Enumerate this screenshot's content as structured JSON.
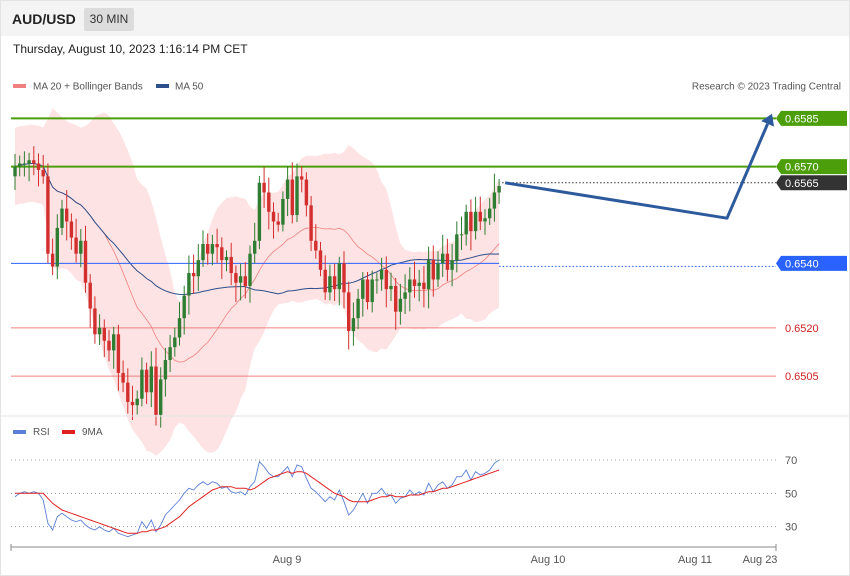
{
  "header": {
    "symbol": "AUD/USD",
    "interval": "30 MIN",
    "datetime": "Thursday, August 10, 2023 1:16:14 PM CET"
  },
  "copyright": "Research © 2023 Trading Central",
  "colors": {
    "resistance": "#4c9f0a",
    "pivot": "#2962ff",
    "support": "#f08080",
    "current": "#333333",
    "arrow": "#2d5a9c",
    "bull": "#2e7d32",
    "bear": "#d32f2f",
    "band": "#fde3e3",
    "ma20": "#f08080",
    "ma50": "#2d4f8c",
    "rsi": "#5b7fd6",
    "rsi_ma": "#e02020"
  },
  "chart_data": [
    {
      "type": "candlestick",
      "title": "",
      "legend": [
        {
          "name": "MA 20 + Bollinger Bands",
          "color": "#f08080"
        },
        {
          "name": "MA 50",
          "color": "#2d4f8c"
        }
      ],
      "x_labels": [
        "Aug 9",
        "Aug 10",
        "Aug 11",
        "Aug 23"
      ],
      "levels": [
        {
          "value": 0.6585,
          "label": "0.6585",
          "role": "resistance"
        },
        {
          "value": 0.657,
          "label": "0.6570",
          "role": "resistance"
        },
        {
          "value": 0.6565,
          "label": "0.6565",
          "role": "current"
        },
        {
          "value": 0.654,
          "label": "0.6540",
          "role": "pivot"
        },
        {
          "value": 0.652,
          "label": "0.6520",
          "role": "support"
        },
        {
          "value": 0.6505,
          "label": "0.6505",
          "role": "support"
        }
      ],
      "ylim": [
        0.64945,
        0.66
      ],
      "candles_close": [
        0.657,
        0.6571,
        0.6571,
        0.6572,
        0.6571,
        0.6569,
        0.6567,
        0.6543,
        0.6539,
        0.6551,
        0.6557,
        0.6553,
        0.6548,
        0.6543,
        0.6547,
        0.6534,
        0.6526,
        0.6518,
        0.652,
        0.6516,
        0.6513,
        0.6518,
        0.6506,
        0.6503,
        0.6497,
        0.6496,
        0.6498,
        0.6507,
        0.65,
        0.6508,
        0.6493,
        0.6504,
        0.651,
        0.6514,
        0.6517,
        0.6523,
        0.653,
        0.6537,
        0.6536,
        0.6541,
        0.6546,
        0.6543,
        0.6546,
        0.6545,
        0.6541,
        0.6542,
        0.6537,
        0.6534,
        0.6536,
        0.6533,
        0.6543,
        0.6547,
        0.6565,
        0.6562,
        0.6556,
        0.6553,
        0.6552,
        0.656,
        0.6566,
        0.6555,
        0.6567,
        0.6566,
        0.6558,
        0.6547,
        0.6544,
        0.6538,
        0.6531,
        0.6536,
        0.6532,
        0.654,
        0.6531,
        0.6519,
        0.6523,
        0.6529,
        0.6535,
        0.6528,
        0.6535,
        0.6535,
        0.6538,
        0.6532,
        0.6533,
        0.6525,
        0.6529,
        0.6531,
        0.6535,
        0.6533,
        0.6534,
        0.6532,
        0.6541,
        0.6535,
        0.654,
        0.6543,
        0.6538,
        0.6541,
        0.6549,
        0.6549,
        0.6556,
        0.655,
        0.6556,
        0.6553,
        0.6554,
        0.6557,
        0.6562,
        0.6564
      ],
      "forecast_path": [
        0.6565,
        0.6554,
        0.6585
      ],
      "moving_averages": {
        "ma20": "MA 20",
        "ma50": "MA 50"
      }
    },
    {
      "type": "line",
      "legend": [
        {
          "name": "RSI",
          "color": "#5b7fd6"
        },
        {
          "name": "9MA",
          "color": "#e02020"
        }
      ],
      "y_ticks": [
        30,
        50,
        70
      ],
      "ylim": [
        19,
        82
      ],
      "rsi": [
        48,
        50,
        51,
        50,
        51,
        50,
        46,
        32,
        28,
        36,
        38,
        36,
        34,
        33,
        34,
        31,
        29,
        28,
        30,
        28,
        27,
        29,
        26,
        25,
        24,
        25,
        26,
        33,
        29,
        34,
        27,
        31,
        37,
        40,
        43,
        46,
        50,
        53,
        52,
        55,
        57,
        55,
        57,
        56,
        53,
        54,
        51,
        50,
        51,
        49,
        54,
        57,
        69,
        66,
        62,
        60,
        60,
        63,
        66,
        60,
        67,
        66,
        59,
        53,
        51,
        48,
        45,
        48,
        46,
        52,
        45,
        37,
        40,
        45,
        50,
        44,
        50,
        50,
        53,
        49,
        49,
        44,
        47,
        48,
        52,
        49,
        51,
        49,
        56,
        51,
        55,
        57,
        53,
        55,
        60,
        60,
        64,
        58,
        63,
        61,
        62,
        64,
        68,
        70
      ],
      "rsi_ma": [
        50,
        50,
        50,
        50,
        50,
        50,
        50,
        47,
        44,
        42,
        40,
        39,
        38,
        37,
        36,
        35,
        34,
        33,
        32,
        31,
        30,
        29,
        28,
        27,
        26,
        26,
        26,
        27,
        27,
        28,
        28,
        29,
        30,
        32,
        34,
        36,
        39,
        42,
        44,
        46,
        48,
        50,
        52,
        53,
        54,
        54,
        54,
        53,
        53,
        53,
        52,
        53,
        55,
        57,
        59,
        60,
        61,
        62,
        63,
        62,
        63,
        63,
        62,
        60,
        58,
        56,
        54,
        52,
        50,
        49,
        48,
        46,
        45,
        45,
        45,
        45,
        46,
        47,
        48,
        48,
        49,
        48,
        48,
        48,
        49,
        49,
        49,
        50,
        51,
        51,
        52,
        53,
        53,
        54,
        55,
        56,
        57,
        58,
        59,
        60,
        61,
        62,
        63,
        64
      ]
    }
  ]
}
